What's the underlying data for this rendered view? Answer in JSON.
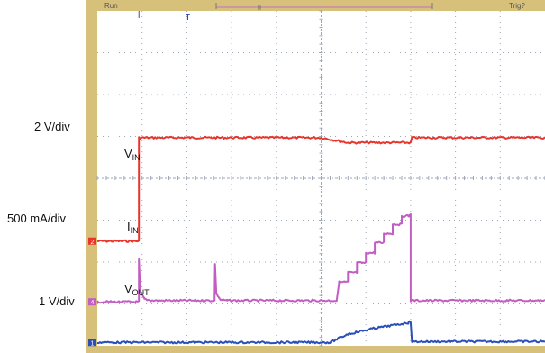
{
  "chart_data": {
    "type": "line",
    "title": "",
    "xlabel": "",
    "ylabel": "",
    "grid": true,
    "frame_color": "#d6c07a",
    "screen_color": "#ffffff",
    "grid_color": "#9aa7b8",
    "top_readout": {
      "left": "Run",
      "right": "Trig?",
      "trigger_marker": "T",
      "second_marker": "II"
    },
    "x_range": [
      0,
      10
    ],
    "divisions": {
      "x": 10,
      "y": 8
    },
    "scales": [
      {
        "name": "ch1-scale",
        "text": "2 V/div"
      },
      {
        "name": "ch2-scale",
        "text": "500 mA/div"
      },
      {
        "name": "ch3-scale",
        "text": "1 V/div"
      }
    ],
    "series": [
      {
        "name": "VIN",
        "label_main": "V",
        "label_sub": "IN",
        "color": "#e8352b",
        "channel_marker": "2",
        "points": [
          [
            0,
            2.5
          ],
          [
            0.93,
            2.5
          ],
          [
            0.93,
            4.97
          ],
          [
            5.0,
            4.97
          ],
          [
            5.6,
            4.85
          ],
          [
            7.0,
            4.85
          ],
          [
            7.03,
            4.97
          ],
          [
            10,
            4.97
          ]
        ]
      },
      {
        "name": "IIN",
        "label_main": "I",
        "label_sub": "IN",
        "color": "#c25ec2",
        "channel_marker": "4",
        "points": [
          [
            0,
            1.05
          ],
          [
            0.93,
            1.05
          ],
          [
            0.93,
            2.05
          ],
          [
            0.96,
            1.3
          ],
          [
            1.05,
            1.12
          ],
          [
            1.2,
            1.08
          ],
          [
            2.4,
            1.08
          ],
          [
            2.62,
            1.08
          ],
          [
            2.63,
            1.95
          ],
          [
            2.66,
            1.25
          ],
          [
            2.75,
            1.1
          ],
          [
            2.9,
            1.08
          ],
          [
            5.35,
            1.08
          ],
          [
            5.4,
            1.52
          ],
          [
            5.6,
            1.52
          ],
          [
            5.6,
            1.75
          ],
          [
            5.8,
            1.75
          ],
          [
            5.8,
            1.98
          ],
          [
            6.0,
            1.98
          ],
          [
            6.0,
            2.22
          ],
          [
            6.2,
            2.22
          ],
          [
            6.2,
            2.46
          ],
          [
            6.4,
            2.46
          ],
          [
            6.4,
            2.68
          ],
          [
            6.6,
            2.68
          ],
          [
            6.6,
            2.9
          ],
          [
            6.8,
            2.9
          ],
          [
            6.8,
            3.1
          ],
          [
            6.96,
            3.1
          ],
          [
            7.0,
            3.15
          ],
          [
            7.0,
            1.08
          ],
          [
            10,
            1.08
          ]
        ]
      },
      {
        "name": "VOUT",
        "label_main": "V",
        "label_sub": "OUT",
        "color": "#2a4fb8",
        "channel_marker": "1",
        "points": [
          [
            0,
            0.08
          ],
          [
            5.2,
            0.08
          ],
          [
            5.6,
            0.28
          ],
          [
            6.2,
            0.42
          ],
          [
            6.95,
            0.55
          ],
          [
            7.0,
            0.58
          ],
          [
            7.03,
            0.1
          ],
          [
            10,
            0.1
          ]
        ]
      }
    ]
  }
}
